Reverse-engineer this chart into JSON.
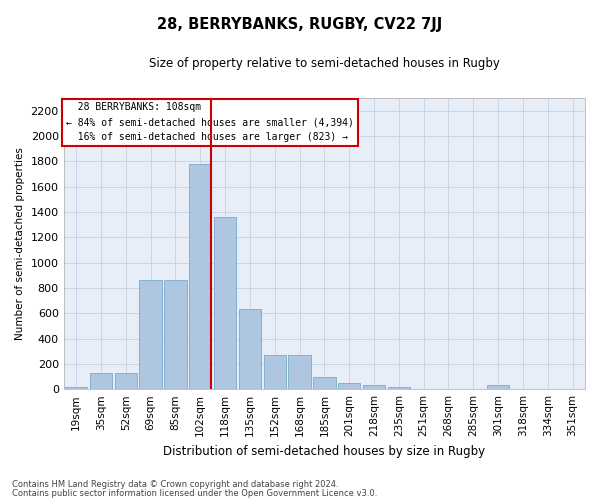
{
  "title": "28, BERRYBANKS, RUGBY, CV22 7JJ",
  "subtitle": "Size of property relative to semi-detached houses in Rugby",
  "xlabel": "Distribution of semi-detached houses by size in Rugby",
  "ylabel": "Number of semi-detached properties",
  "categories": [
    "19sqm",
    "35sqm",
    "52sqm",
    "69sqm",
    "85sqm",
    "102sqm",
    "118sqm",
    "135sqm",
    "152sqm",
    "168sqm",
    "185sqm",
    "201sqm",
    "218sqm",
    "235sqm",
    "251sqm",
    "268sqm",
    "285sqm",
    "301sqm",
    "318sqm",
    "334sqm",
    "351sqm"
  ],
  "values": [
    20,
    130,
    130,
    860,
    860,
    1780,
    1360,
    635,
    270,
    270,
    100,
    50,
    30,
    15,
    5,
    0,
    0,
    30,
    0,
    0,
    0
  ],
  "bar_color": "#aec6df",
  "bar_edge_color": "#7aaacb",
  "marker_label": "28 BERRYBANKS: 108sqm",
  "pct_smaller": 84,
  "pct_larger": 16,
  "count_smaller": 4394,
  "count_larger": 823,
  "red_line_color": "#cc0000",
  "red_line_x": 5.42,
  "ylim": [
    0,
    2300
  ],
  "yticks": [
    0,
    200,
    400,
    600,
    800,
    1000,
    1200,
    1400,
    1600,
    1800,
    2000,
    2200
  ],
  "background_color": "#ffffff",
  "plot_bg_color": "#e8eef8",
  "grid_color": "#c8d4e8",
  "footnote1": "Contains HM Land Registry data © Crown copyright and database right 2024.",
  "footnote2": "Contains public sector information licensed under the Open Government Licence v3.0."
}
